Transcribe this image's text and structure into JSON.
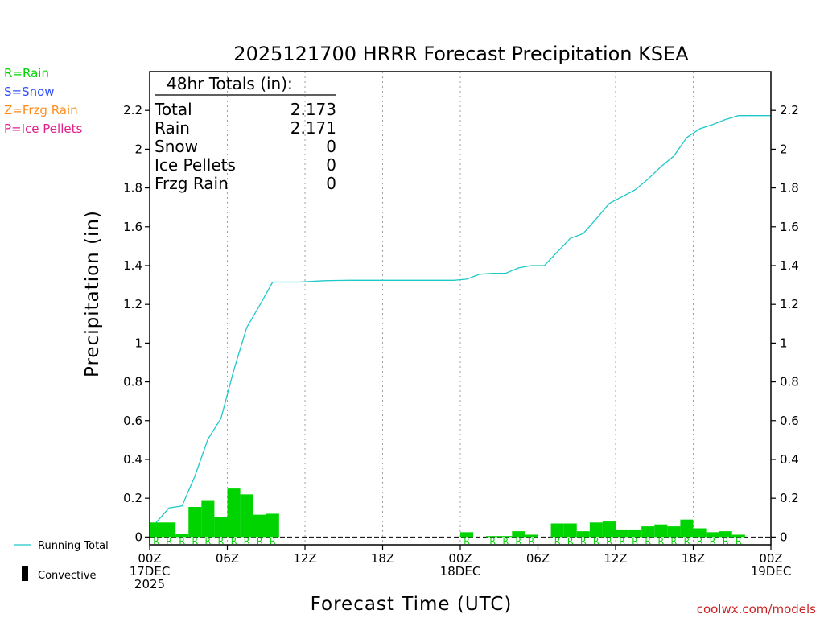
{
  "page": {
    "credit": "coolwx.com/models"
  },
  "type_legend": [
    {
      "text": "R=Rain",
      "color": "#00d400"
    },
    {
      "text": "S=Snow",
      "color": "#3050ff"
    },
    {
      "text": "Z=Frzg Rain",
      "color": "#ff8c1a"
    },
    {
      "text": "P=Ice Pellets",
      "color": "#e0208c"
    }
  ],
  "totals_box": {
    "heading": "48hr Totals (in):",
    "rows": [
      {
        "label": "Total",
        "value": "2.173"
      },
      {
        "label": "Rain",
        "value": "2.171"
      },
      {
        "label": "Snow",
        "value": "0"
      },
      {
        "label": "Ice Pellets",
        "value": "0"
      },
      {
        "label": "Frzg Rain",
        "value": "0"
      }
    ]
  },
  "bottom_legend": {
    "running_total": "Running Total",
    "convective": "Convective"
  },
  "chart_data": {
    "type": "bar",
    "title": "2025121700 HRRR Forecast Precipitation KSEA",
    "xlabel": "Forecast Time (UTC)",
    "ylabel": "Precipitation (in)",
    "ylim": [
      -0.04,
      2.4
    ],
    "xlim": [
      0,
      48
    ],
    "y_ticks": [
      0,
      0.2,
      0.4,
      0.6,
      0.8,
      1,
      1.2,
      1.4,
      1.6,
      1.8,
      2,
      2.2
    ],
    "y_tick_labels": [
      "0",
      "0.2",
      "0.4",
      "0.6",
      "0.8",
      "1",
      "1.2",
      "1.4",
      "1.6",
      "1.8",
      "2",
      "2.2"
    ],
    "x_ticks": [
      {
        "hour": 0,
        "lines": [
          "00Z",
          "17DEC",
          "2025"
        ]
      },
      {
        "hour": 6,
        "lines": [
          "06Z"
        ]
      },
      {
        "hour": 12,
        "lines": [
          "12Z"
        ]
      },
      {
        "hour": 18,
        "lines": [
          "18Z"
        ]
      },
      {
        "hour": 24,
        "lines": [
          "00Z",
          "18DEC"
        ]
      },
      {
        "hour": 30,
        "lines": [
          "06Z"
        ]
      },
      {
        "hour": 36,
        "lines": [
          "12Z"
        ]
      },
      {
        "hour": 42,
        "lines": [
          "18Z"
        ]
      },
      {
        "hour": 48,
        "lines": [
          "00Z",
          "19DEC"
        ]
      }
    ],
    "grid": "vertical dotted at 6-hour ticks",
    "bar_color": "#00d400",
    "line_color": "#20c8c8",
    "precip_type_marker": "R",
    "series": [
      {
        "name": "Running Total",
        "kind": "line",
        "x": [
          0.5,
          1.5,
          2.5,
          3.5,
          4.5,
          5.5,
          6.5,
          7.5,
          8.5,
          9.5,
          10.5,
          11.5,
          12.5,
          13.5,
          14.5,
          15.5,
          16.5,
          17.5,
          18.5,
          19.5,
          20.5,
          21.5,
          22.5,
          23.5,
          24.5,
          25.5,
          26.5,
          27.5,
          28.5,
          29.5,
          30.5,
          31.5,
          32.5,
          33.5,
          34.5,
          35.5,
          36.5,
          37.5,
          38.5,
          39.5,
          40.5,
          41.5,
          42.5,
          43.5,
          44.5,
          45.5,
          46.5,
          47.5
        ],
        "values": [
          0.075,
          0.15,
          0.16,
          0.315,
          0.505,
          0.61,
          0.86,
          1.08,
          1.195,
          1.315,
          1.315,
          1.315,
          1.318,
          1.322,
          1.323,
          1.324,
          1.324,
          1.324,
          1.324,
          1.324,
          1.324,
          1.324,
          1.324,
          1.324,
          1.33,
          1.355,
          1.36,
          1.36,
          1.388,
          1.4,
          1.4,
          1.47,
          1.54,
          1.565,
          1.64,
          1.72,
          1.755,
          1.79,
          1.845,
          1.91,
          1.965,
          2.06,
          2.105,
          2.127,
          2.153,
          2.173,
          2.173,
          2.173
        ]
      },
      {
        "name": "Rain",
        "kind": "bar",
        "x": [
          0.5,
          1.5,
          2.5,
          3.5,
          4.5,
          5.5,
          6.5,
          7.5,
          8.5,
          9.5,
          24.5,
          26.5,
          27.5,
          28.5,
          29.5,
          31.5,
          32.5,
          33.5,
          34.5,
          35.5,
          36.5,
          37.5,
          38.5,
          39.5,
          40.5,
          41.5,
          42.5,
          43.5,
          44.5,
          45.5
        ],
        "values": [
          0.075,
          0.075,
          0.015,
          0.155,
          0.19,
          0.105,
          0.25,
          0.22,
          0.115,
          0.12,
          0.025,
          0.005,
          0.005,
          0.03,
          0.012,
          0.07,
          0.07,
          0.03,
          0.075,
          0.08,
          0.035,
          0.035,
          0.055,
          0.065,
          0.055,
          0.09,
          0.045,
          0.025,
          0.03,
          0.012
        ]
      }
    ]
  }
}
